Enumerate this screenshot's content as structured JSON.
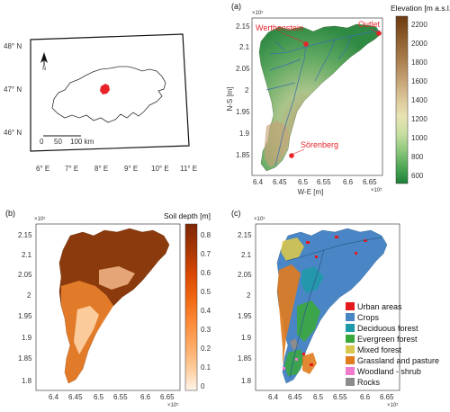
{
  "panel_a": {
    "label": "(a)",
    "exp_y": "×10⁵",
    "exp_x": "×10⁵",
    "ylabel": "N-S [m]",
    "xlabel": "W-E [m]",
    "yticks": [
      "2.15",
      "2.1",
      "2.05",
      "2",
      "1.95",
      "1.9",
      "1.85"
    ],
    "xticks": [
      "6.4",
      "6.45",
      "6.5",
      "6.55",
      "6.6",
      "6.65"
    ],
    "places": [
      "Werthenstein",
      "Outlet",
      "Sörenberg"
    ],
    "colorbar_title": "Elevation [m a.s.l.]",
    "colorbar_ticks": [
      "2200",
      "2000",
      "1800",
      "1600",
      "1400",
      "1200",
      "1000",
      "800",
      "600"
    ],
    "colorbar_colors": [
      "#6b3a12",
      "#8a5a2a",
      "#a77b4a",
      "#c4a174",
      "#dcc89a",
      "#e8e3b4",
      "#c9dfa1",
      "#8fc87e",
      "#4fa856",
      "#1e7f3a"
    ]
  },
  "panel_b": {
    "label": "(b)",
    "exp_y": "×10⁵",
    "exp_x": "×10⁵",
    "yticks": [
      "2.15",
      "2.1",
      "2.05",
      "2",
      "1.95",
      "1.9",
      "1.85",
      "1.8"
    ],
    "xticks": [
      "6.4",
      "6.45",
      "6.5",
      "6.55",
      "6.6",
      "6.65"
    ],
    "colorbar_title": "Soil depth [m]",
    "colorbar_ticks": [
      "0.8",
      "0.7",
      "0.6",
      "0.5",
      "0.4",
      "0.3",
      "0.2",
      "0.1",
      "0"
    ],
    "colorbar_colors": [
      "#7f2704",
      "#a63603",
      "#d94801",
      "#f16913",
      "#fd8d3c",
      "#fdae6b",
      "#fdd0a2",
      "#fee6ce",
      "#fff5eb"
    ]
  },
  "panel_c": {
    "label": "(c)",
    "exp_y": "×10⁵",
    "exp_x": "×10⁵",
    "yticks": [
      "2.15",
      "2.1",
      "2.05",
      "2",
      "1.95",
      "1.9",
      "1.85",
      "1.8"
    ],
    "xticks": [
      "6.4",
      "6.45",
      "6.5",
      "6.55",
      "6.6",
      "6.65"
    ],
    "legend": [
      {
        "label": "Urban areas",
        "color": "#e31a1c"
      },
      {
        "label": "Crops",
        "color": "#4a86c5"
      },
      {
        "label": "Deciduous forest",
        "color": "#1e9aa8"
      },
      {
        "label": "Evergreen forest",
        "color": "#3aa83a"
      },
      {
        "label": "Mixed forest",
        "color": "#d8c74e"
      },
      {
        "label": "Grassland and pasture",
        "color": "#e07b1e"
      },
      {
        "label": "Woodland - shrub",
        "color": "#f07acb"
      },
      {
        "label": "Rocks",
        "color": "#8c8c8c"
      }
    ]
  },
  "inset": {
    "lat_labels": [
      "48° N",
      "47° N",
      "46° N"
    ],
    "lon_labels": [
      "6° E",
      "7° E",
      "8° E",
      "9° E",
      "10° E",
      "11° E"
    ],
    "scale_labels": [
      "0",
      "50",
      "100 km"
    ]
  }
}
